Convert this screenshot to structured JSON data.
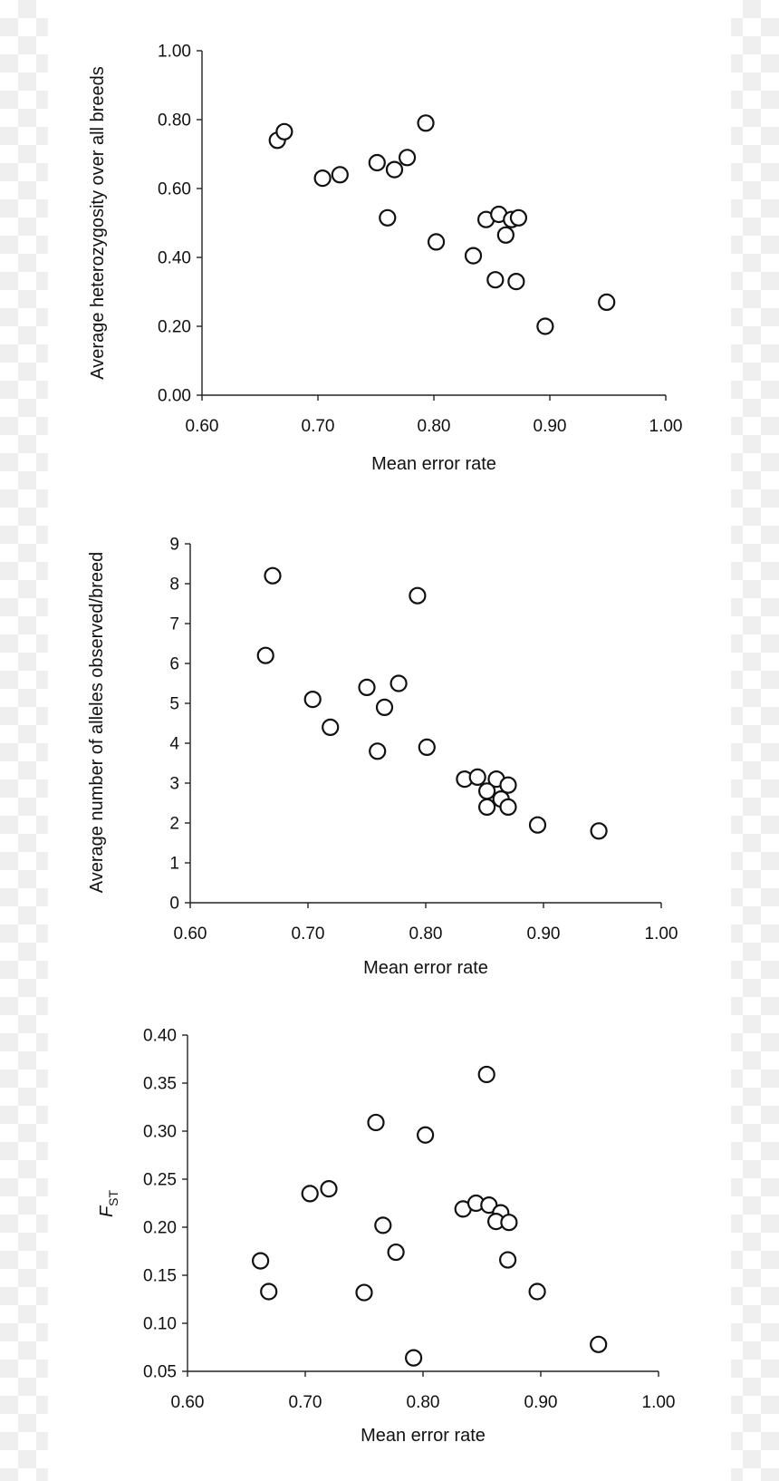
{
  "chart_data": [
    {
      "type": "scatter",
      "title": "",
      "xlabel": "Mean error rate",
      "ylabel": "Average heterozygosity over all breeds",
      "xlim": [
        0.6,
        1.0
      ],
      "ylim": [
        0.0,
        1.0
      ],
      "x_ticks": [
        "0.60",
        "0.70",
        "0.80",
        "0.90",
        "1.00"
      ],
      "y_ticks": [
        "0.00",
        "0.20",
        "0.40",
        "0.60",
        "0.80",
        "1.00"
      ],
      "grid": false,
      "marker": "open-circle",
      "points": [
        {
          "x": 0.665,
          "y": 0.74
        },
        {
          "x": 0.671,
          "y": 0.765
        },
        {
          "x": 0.704,
          "y": 0.63
        },
        {
          "x": 0.719,
          "y": 0.64
        },
        {
          "x": 0.751,
          "y": 0.675
        },
        {
          "x": 0.766,
          "y": 0.655
        },
        {
          "x": 0.777,
          "y": 0.69
        },
        {
          "x": 0.793,
          "y": 0.79
        },
        {
          "x": 0.76,
          "y": 0.515
        },
        {
          "x": 0.802,
          "y": 0.445
        },
        {
          "x": 0.834,
          "y": 0.405
        },
        {
          "x": 0.845,
          "y": 0.51
        },
        {
          "x": 0.856,
          "y": 0.525
        },
        {
          "x": 0.867,
          "y": 0.51
        },
        {
          "x": 0.873,
          "y": 0.515
        },
        {
          "x": 0.862,
          "y": 0.465
        },
        {
          "x": 0.853,
          "y": 0.335
        },
        {
          "x": 0.871,
          "y": 0.33
        },
        {
          "x": 0.896,
          "y": 0.2
        },
        {
          "x": 0.949,
          "y": 0.27
        }
      ]
    },
    {
      "type": "scatter",
      "title": "",
      "xlabel": "Mean error rate",
      "ylabel": "Average number of alleles observed/breed",
      "xlim": [
        0.6,
        1.0
      ],
      "ylim": [
        0,
        9
      ],
      "x_ticks": [
        "0.60",
        "0.70",
        "0.80",
        "0.90",
        "1.00"
      ],
      "y_ticks": [
        "0",
        "1",
        "2",
        "3",
        "4",
        "5",
        "6",
        "7",
        "8",
        "9"
      ],
      "grid": false,
      "marker": "open-circle",
      "points": [
        {
          "x": 0.67,
          "y": 8.2
        },
        {
          "x": 0.664,
          "y": 6.2
        },
        {
          "x": 0.704,
          "y": 5.1
        },
        {
          "x": 0.719,
          "y": 4.4
        },
        {
          "x": 0.75,
          "y": 5.4
        },
        {
          "x": 0.765,
          "y": 4.9
        },
        {
          "x": 0.777,
          "y": 5.5
        },
        {
          "x": 0.759,
          "y": 3.8
        },
        {
          "x": 0.793,
          "y": 7.7
        },
        {
          "x": 0.801,
          "y": 3.9
        },
        {
          "x": 0.833,
          "y": 3.1
        },
        {
          "x": 0.844,
          "y": 3.15
        },
        {
          "x": 0.86,
          "y": 3.1
        },
        {
          "x": 0.87,
          "y": 2.95
        },
        {
          "x": 0.852,
          "y": 2.8
        },
        {
          "x": 0.864,
          "y": 2.6
        },
        {
          "x": 0.852,
          "y": 2.4
        },
        {
          "x": 0.87,
          "y": 2.4
        },
        {
          "x": 0.895,
          "y": 1.95
        },
        {
          "x": 0.947,
          "y": 1.8
        }
      ]
    },
    {
      "type": "scatter",
      "title": "",
      "xlabel": "Mean error rate",
      "ylabel": "F",
      "ylabel_sub": "ST",
      "xlim": [
        0.6,
        1.0
      ],
      "ylim": [
        0.05,
        0.4
      ],
      "x_ticks": [
        "0.60",
        "0.70",
        "0.80",
        "0.90",
        "1.00"
      ],
      "y_ticks": [
        "0.05",
        "0.10",
        "0.15",
        "0.20",
        "0.25",
        "0.30",
        "0.35",
        "0.40"
      ],
      "grid": false,
      "marker": "open-circle",
      "points": [
        {
          "x": 0.662,
          "y": 0.165
        },
        {
          "x": 0.669,
          "y": 0.133
        },
        {
          "x": 0.704,
          "y": 0.235
        },
        {
          "x": 0.72,
          "y": 0.24
        },
        {
          "x": 0.75,
          "y": 0.132
        },
        {
          "x": 0.76,
          "y": 0.309
        },
        {
          "x": 0.766,
          "y": 0.202
        },
        {
          "x": 0.777,
          "y": 0.174
        },
        {
          "x": 0.792,
          "y": 0.064
        },
        {
          "x": 0.802,
          "y": 0.296
        },
        {
          "x": 0.834,
          "y": 0.219
        },
        {
          "x": 0.845,
          "y": 0.225
        },
        {
          "x": 0.856,
          "y": 0.223
        },
        {
          "x": 0.854,
          "y": 0.359
        },
        {
          "x": 0.866,
          "y": 0.215
        },
        {
          "x": 0.862,
          "y": 0.206
        },
        {
          "x": 0.873,
          "y": 0.205
        },
        {
          "x": 0.872,
          "y": 0.166
        },
        {
          "x": 0.897,
          "y": 0.133
        },
        {
          "x": 0.949,
          "y": 0.078
        }
      ]
    }
  ]
}
